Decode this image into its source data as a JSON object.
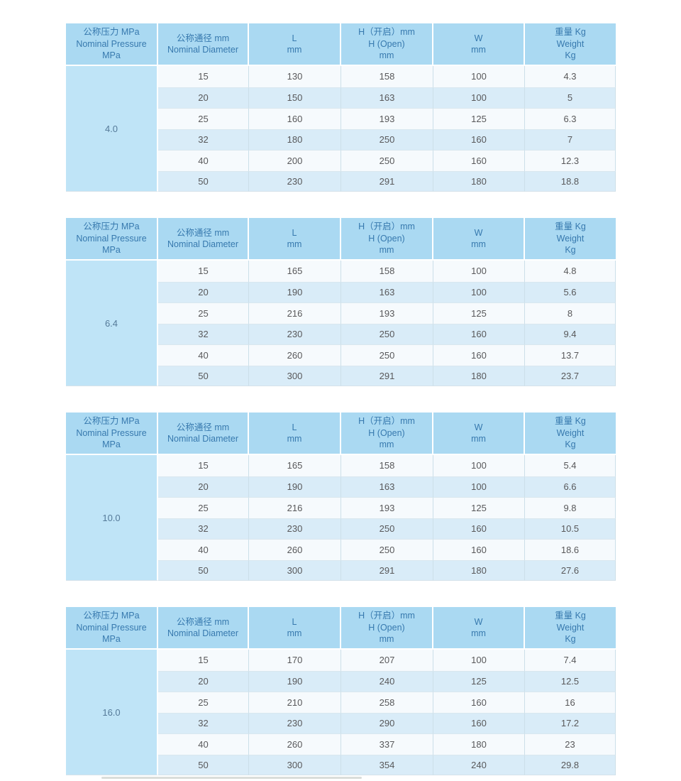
{
  "colors": {
    "page_bg": "#ffffff",
    "header_bg": "#aad9f2",
    "header_text": "#3779ae",
    "pressure_col_bg": "#bfe4f7",
    "pressure_text": "#557a99",
    "row_light_bg": "#f6fafd",
    "row_blue_bg": "#d9ecf8",
    "cell_text": "#58585a",
    "grid_line": "#ccdfe9",
    "row_line": "#d9e7ef",
    "outer_line": "#d5e2ea"
  },
  "header": {
    "cols": [
      "公称压力 MPa\nNominal Pressure\nMPa",
      "公称通径 mm\nNominal Diameter",
      "L\nmm",
      "H（开启）mm\nH (Open)\nmm",
      "W\nmm",
      "重量 Kg\nWeight\nKg"
    ]
  },
  "tables": [
    {
      "pressure": "4.0",
      "rows": [
        [
          "15",
          "130",
          "158",
          "100",
          "4.3"
        ],
        [
          "20",
          "150",
          "163",
          "100",
          "5"
        ],
        [
          "25",
          "160",
          "193",
          "125",
          "6.3"
        ],
        [
          "32",
          "180",
          "250",
          "160",
          "7"
        ],
        [
          "40",
          "200",
          "250",
          "160",
          "12.3"
        ],
        [
          "50",
          "230",
          "291",
          "180",
          "18.8"
        ]
      ]
    },
    {
      "pressure": "6.4",
      "rows": [
        [
          "15",
          "165",
          "158",
          "100",
          "4.8"
        ],
        [
          "20",
          "190",
          "163",
          "100",
          "5.6"
        ],
        [
          "25",
          "216",
          "193",
          "125",
          "8"
        ],
        [
          "32",
          "230",
          "250",
          "160",
          "9.4"
        ],
        [
          "40",
          "260",
          "250",
          "160",
          "13.7"
        ],
        [
          "50",
          "300",
          "291",
          "180",
          "23.7"
        ]
      ]
    },
    {
      "pressure": "10.0",
      "rows": [
        [
          "15",
          "165",
          "158",
          "100",
          "5.4"
        ],
        [
          "20",
          "190",
          "163",
          "100",
          "6.6"
        ],
        [
          "25",
          "216",
          "193",
          "125",
          "9.8"
        ],
        [
          "32",
          "230",
          "250",
          "160",
          "10.5"
        ],
        [
          "40",
          "260",
          "250",
          "160",
          "18.6"
        ],
        [
          "50",
          "300",
          "291",
          "180",
          "27.6"
        ]
      ]
    },
    {
      "pressure": "16.0",
      "rows": [
        [
          "15",
          "170",
          "207",
          "100",
          "7.4"
        ],
        [
          "20",
          "190",
          "240",
          "125",
          "12.5"
        ],
        [
          "25",
          "210",
          "258",
          "160",
          "16"
        ],
        [
          "32",
          "230",
          "290",
          "160",
          "17.2"
        ],
        [
          "40",
          "260",
          "337",
          "180",
          "23"
        ],
        [
          "50",
          "300",
          "354",
          "240",
          "29.8"
        ]
      ]
    }
  ]
}
